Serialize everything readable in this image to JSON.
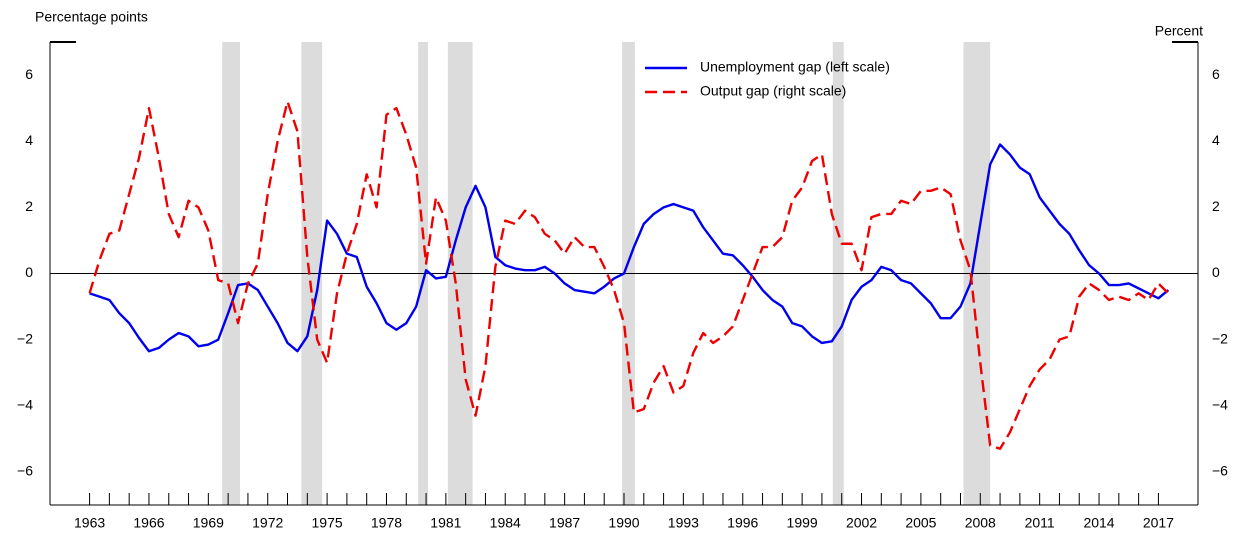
{
  "chart_data": {
    "type": "line",
    "left_axis_label": "Percentage points",
    "right_axis_label": "Percent",
    "x": [
      1963,
      1963.5,
      1964,
      1964.5,
      1965,
      1965.5,
      1966,
      1966.5,
      1967,
      1967.5,
      1968,
      1968.5,
      1969,
      1969.5,
      1970,
      1970.5,
      1971,
      1971.5,
      1972,
      1972.5,
      1973,
      1973.5,
      1974,
      1974.5,
      1975,
      1975.5,
      1976,
      1976.5,
      1977,
      1977.5,
      1978,
      1978.5,
      1979,
      1979.5,
      1980,
      1980.5,
      1981,
      1981.5,
      1982,
      1982.5,
      1983,
      1983.5,
      1984,
      1984.5,
      1985,
      1985.5,
      1986,
      1986.5,
      1987,
      1987.5,
      1988,
      1988.5,
      1989,
      1989.5,
      1990,
      1990.5,
      1991,
      1991.5,
      1992,
      1992.5,
      1993,
      1993.5,
      1994,
      1994.5,
      1995,
      1995.5,
      1996,
      1996.5,
      1997,
      1997.5,
      1998,
      1998.5,
      1999,
      1999.5,
      2000,
      2000.5,
      2001,
      2001.5,
      2002,
      2002.5,
      2003,
      2003.5,
      2004,
      2004.5,
      2005,
      2005.5,
      2006,
      2006.5,
      2007,
      2007.5,
      2008,
      2008.5,
      2009,
      2009.5,
      2010,
      2010.5,
      2011,
      2011.5,
      2012,
      2012.5,
      2013,
      2013.5,
      2014,
      2014.5,
      2015,
      2015.5,
      2016,
      2016.5,
      2017,
      2017.5
    ],
    "series": [
      {
        "name": "Unemployment gap (left scale)",
        "color": "#0000ee",
        "dashed": false,
        "axis": "y",
        "values": [
          -0.6,
          -0.7,
          -0.8,
          -1.2,
          -1.5,
          -1.95,
          -2.35,
          -2.25,
          -2.0,
          -1.8,
          -1.9,
          -2.2,
          -2.15,
          -2.0,
          -1.2,
          -0.35,
          -0.3,
          -0.5,
          -1.0,
          -1.5,
          -2.1,
          -2.35,
          -1.9,
          -0.5,
          1.6,
          1.2,
          0.6,
          0.5,
          -0.4,
          -0.9,
          -1.5,
          -1.7,
          -1.5,
          -1.0,
          0.1,
          -0.15,
          -0.1,
          1.0,
          2.0,
          2.65,
          2.0,
          0.5,
          0.25,
          0.15,
          0.1,
          0.1,
          0.2,
          0.0,
          -0.3,
          -0.5,
          -0.55,
          -0.6,
          -0.4,
          -0.15,
          0.0,
          0.8,
          1.5,
          1.8,
          2.0,
          2.1,
          2.0,
          1.9,
          1.4,
          1.0,
          0.6,
          0.55,
          0.25,
          -0.1,
          -0.5,
          -0.8,
          -1.0,
          -1.5,
          -1.6,
          -1.9,
          -2.1,
          -2.05,
          -1.6,
          -0.8,
          -0.4,
          -0.2,
          0.2,
          0.1,
          -0.2,
          -0.3,
          -0.6,
          -0.9,
          -1.35,
          -1.35,
          -1.0,
          -0.3,
          1.5,
          3.3,
          3.9,
          3.6,
          3.2,
          3.0,
          2.3,
          1.9,
          1.5,
          1.2,
          0.7,
          0.25,
          0.0,
          -0.35,
          -0.35,
          -0.3,
          -0.45,
          -0.6,
          -0.75,
          -0.5
        ]
      },
      {
        "name": "Output gap (right scale)",
        "color": "#ee0000",
        "dashed": true,
        "axis": "y2",
        "values": [
          -0.6,
          0.4,
          1.2,
          1.3,
          2.4,
          3.5,
          5.0,
          3.5,
          1.8,
          1.1,
          2.2,
          2.0,
          1.3,
          -0.2,
          -0.3,
          -1.5,
          -0.3,
          0.3,
          2.4,
          4.0,
          5.2,
          4.3,
          0.5,
          -2.0,
          -2.7,
          -0.6,
          0.6,
          1.5,
          3.0,
          2.0,
          4.8,
          5.0,
          4.2,
          3.2,
          0.3,
          2.3,
          1.6,
          -0.3,
          -3.2,
          -4.3,
          -2.8,
          0.2,
          1.6,
          1.5,
          1.9,
          1.7,
          1.2,
          1.0,
          0.6,
          1.1,
          0.8,
          0.8,
          0.2,
          -0.5,
          -1.5,
          -4.2,
          -4.1,
          -3.3,
          -2.8,
          -3.6,
          -3.4,
          -2.4,
          -1.8,
          -2.1,
          -1.9,
          -1.6,
          -0.8,
          0.0,
          0.8,
          0.8,
          1.1,
          2.2,
          2.6,
          3.4,
          3.6,
          1.8,
          0.9,
          0.9,
          0.1,
          1.7,
          1.8,
          1.8,
          2.2,
          2.1,
          2.5,
          2.5,
          2.6,
          2.4,
          1.0,
          0.1,
          -2.7,
          -5.2,
          -5.3,
          -4.8,
          -4.1,
          -3.4,
          -2.9,
          -2.6,
          -2.0,
          -1.9,
          -0.7,
          -0.3,
          -0.5,
          -0.8,
          -0.7,
          -0.8,
          -0.6,
          -0.8,
          -0.3,
          -0.6
        ]
      }
    ],
    "recessions": [
      [
        1969.7,
        1970.6
      ],
      [
        1973.7,
        1974.75
      ],
      [
        1979.6,
        1980.1
      ],
      [
        1981.1,
        1982.35
      ],
      [
        1989.9,
        1990.55
      ],
      [
        2000.55,
        2001.1
      ],
      [
        2007.15,
        2008.5
      ]
    ],
    "recession_color": "#dcdcdc",
    "xlim": [
      1961,
      2019
    ],
    "xticks": [
      1963,
      1966,
      1969,
      1972,
      1975,
      1978,
      1981,
      1984,
      1987,
      1990,
      1993,
      1996,
      1999,
      2002,
      2005,
      2008,
      2011,
      2014,
      2017
    ],
    "xticks_minor": [
      1963,
      1964,
      1965,
      1966,
      1967,
      1968,
      1969,
      1970,
      1971,
      1972,
      1973,
      1974,
      1975,
      1976,
      1977,
      1978,
      1979,
      1980,
      1981,
      1982,
      1983,
      1984,
      1985,
      1986,
      1987,
      1988,
      1989,
      1990,
      1991,
      1992,
      1993,
      1994,
      1995,
      1996,
      1997,
      1998,
      1999,
      2000,
      2001,
      2002,
      2003,
      2004,
      2005,
      2006,
      2007,
      2008,
      2009,
      2010,
      2011,
      2012,
      2013,
      2014,
      2015,
      2016,
      2017
    ],
    "ylim": [
      -7,
      7
    ],
    "yticks": [
      {
        "value": -6,
        "label": "−6"
      },
      {
        "value": -4,
        "label": "−4"
      },
      {
        "value": -2,
        "label": "−2"
      },
      0,
      2,
      4,
      6
    ],
    "y2lim": [
      -7,
      7
    ],
    "y2ticks": [
      {
        "value": -6,
        "label": "−6"
      },
      {
        "value": -4,
        "label": "−4"
      },
      {
        "value": -2,
        "label": "−2"
      },
      0,
      2,
      4,
      6
    ],
    "legend": "top-center"
  }
}
